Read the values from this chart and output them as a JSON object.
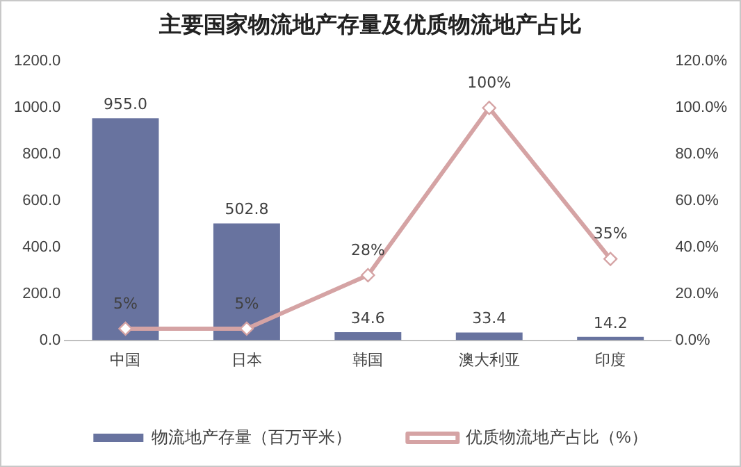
{
  "chart_data": {
    "type": "bar",
    "title": "主要国家物流地产存量及优质物流地产占比",
    "categories": [
      "中国",
      "日本",
      "韩国",
      "澳大利亚",
      "印度"
    ],
    "series": [
      {
        "name": "物流地产存量（百万平米）",
        "color": "#68739f",
        "values": [
          955.0,
          502.8,
          34.6,
          33.4,
          14.2
        ],
        "value_labels": [
          "955.0",
          "502.8",
          "34.6",
          "33.4",
          "14.2"
        ]
      },
      {
        "name": "优质物流地产占比（%）",
        "type": "line",
        "axis": "y2",
        "color": "#d5a3a4",
        "marker": "diamond",
        "values": [
          5,
          5,
          28,
          100,
          35
        ],
        "value_labels": [
          "5%",
          "5%",
          "28%",
          "100%",
          "35%"
        ]
      }
    ],
    "ylim": [
      0,
      1200
    ],
    "yticks": [
      {
        "value": 0,
        "label": "0.0"
      },
      {
        "value": 200,
        "label": "200.0"
      },
      {
        "value": 400,
        "label": "400.0"
      },
      {
        "value": 600,
        "label": "600.0"
      },
      {
        "value": 800,
        "label": "800.0"
      },
      {
        "value": 1000,
        "label": "1000.0"
      },
      {
        "value": 1200,
        "label": "1200.0"
      }
    ],
    "y2lim": [
      0,
      120
    ],
    "y2ticks": [
      {
        "value": 0,
        "label": "0.0%"
      },
      {
        "value": 20,
        "label": "20.0%"
      },
      {
        "value": 40,
        "label": "40.0%"
      },
      {
        "value": 60,
        "label": "60.0%"
      },
      {
        "value": 80,
        "label": "80.0%"
      },
      {
        "value": 100,
        "label": "100.0%"
      },
      {
        "value": 120,
        "label": "120.0%"
      }
    ],
    "grid": false,
    "legend": "bottom"
  }
}
